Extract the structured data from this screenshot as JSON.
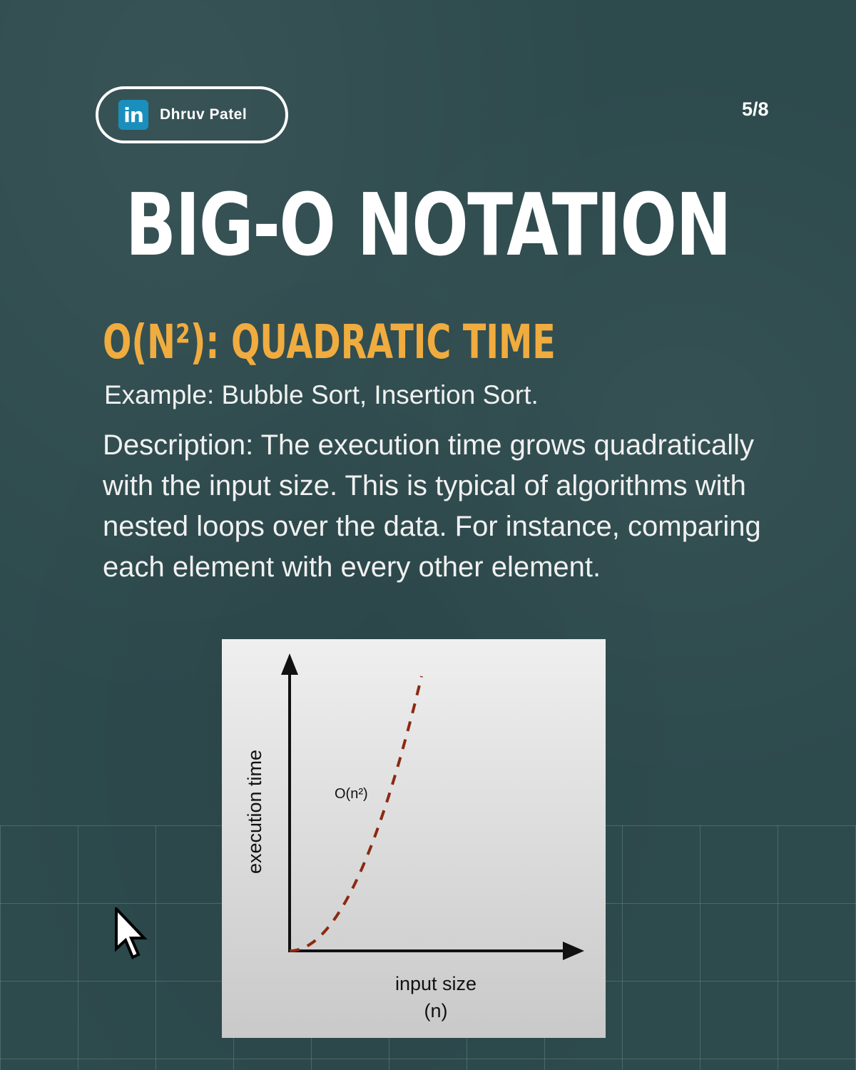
{
  "badge": {
    "icon": "linkedin-icon",
    "icon_text": "in",
    "name": "Dhruv Patel"
  },
  "page_indicator": "5/8",
  "title": "BIG-O NOTATION",
  "subtitle": "O(N²): QUADRATIC TIME",
  "example": "Example: Bubble Sort, Insertion Sort.",
  "description": "Description: The execution time grows quadratically with the input size. This is typical of algorithms with nested loops over the data. For instance, comparing each element with every other element.",
  "colors": {
    "background": "#2d4a4d",
    "accent": "#f0ac3f",
    "curve": "#8b2a12",
    "linkedin": "#1a8fbd"
  },
  "chart_data": {
    "type": "line",
    "ylabel": "execution time",
    "xlabel_line1": "input size",
    "xlabel_line2": "(n)",
    "curve_label": "O(n²)",
    "series": [
      {
        "name": "O(n²)",
        "style": "dashed",
        "function": "n^2"
      }
    ]
  },
  "cursor": {
    "icon": "mouse-pointer-icon"
  }
}
